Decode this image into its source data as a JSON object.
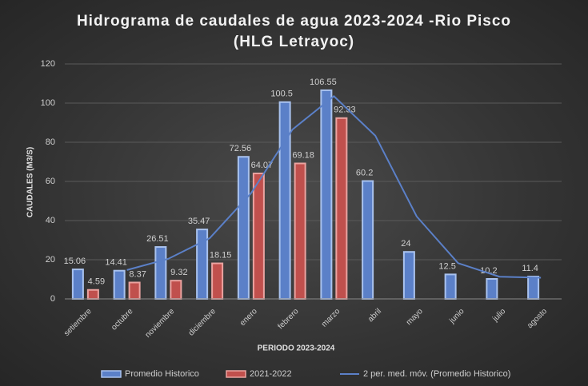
{
  "chart_data": {
    "type": "bar",
    "title": "Hidrograma de caudales  de agua 2023-2024 -Rio Pisco (HLG Letrayoc)",
    "x_label": "PERIODO 2023-2024",
    "y_label": "CAUDALES (M3/S)",
    "categories": [
      "setiembre",
      "octubre",
      "noviembre",
      "diciembre",
      "enero",
      "febrero",
      "marzo",
      "abril",
      "mayo",
      "junio",
      "julio",
      "agosto"
    ],
    "series": [
      {
        "name": "Promedio Historico",
        "type": "bar",
        "color": "#5b80c8",
        "values": [
          15.06,
          14.41,
          26.51,
          35.47,
          72.56,
          100.5,
          106.55,
          60.2,
          24,
          12.5,
          10.2,
          11.4
        ]
      },
      {
        "name": "2021-2022",
        "type": "bar",
        "color": "#c0504d",
        "values": [
          4.59,
          8.37,
          9.32,
          18.15,
          64.07,
          69.18,
          92.33,
          null,
          null,
          null,
          null,
          null
        ]
      },
      {
        "name": "2 per. med. móv. (Promedio Historico)",
        "type": "line",
        "color": "#5b80c8",
        "values": [
          null,
          14.735,
          20.46,
          30.99,
          54.015,
          86.53,
          103.525,
          83.375,
          42.1,
          18.25,
          11.35,
          10.8
        ]
      }
    ],
    "ylim": [
      0,
      120
    ],
    "yticks": [
      0,
      20,
      40,
      60,
      80,
      100,
      120
    ],
    "grid": true
  }
}
